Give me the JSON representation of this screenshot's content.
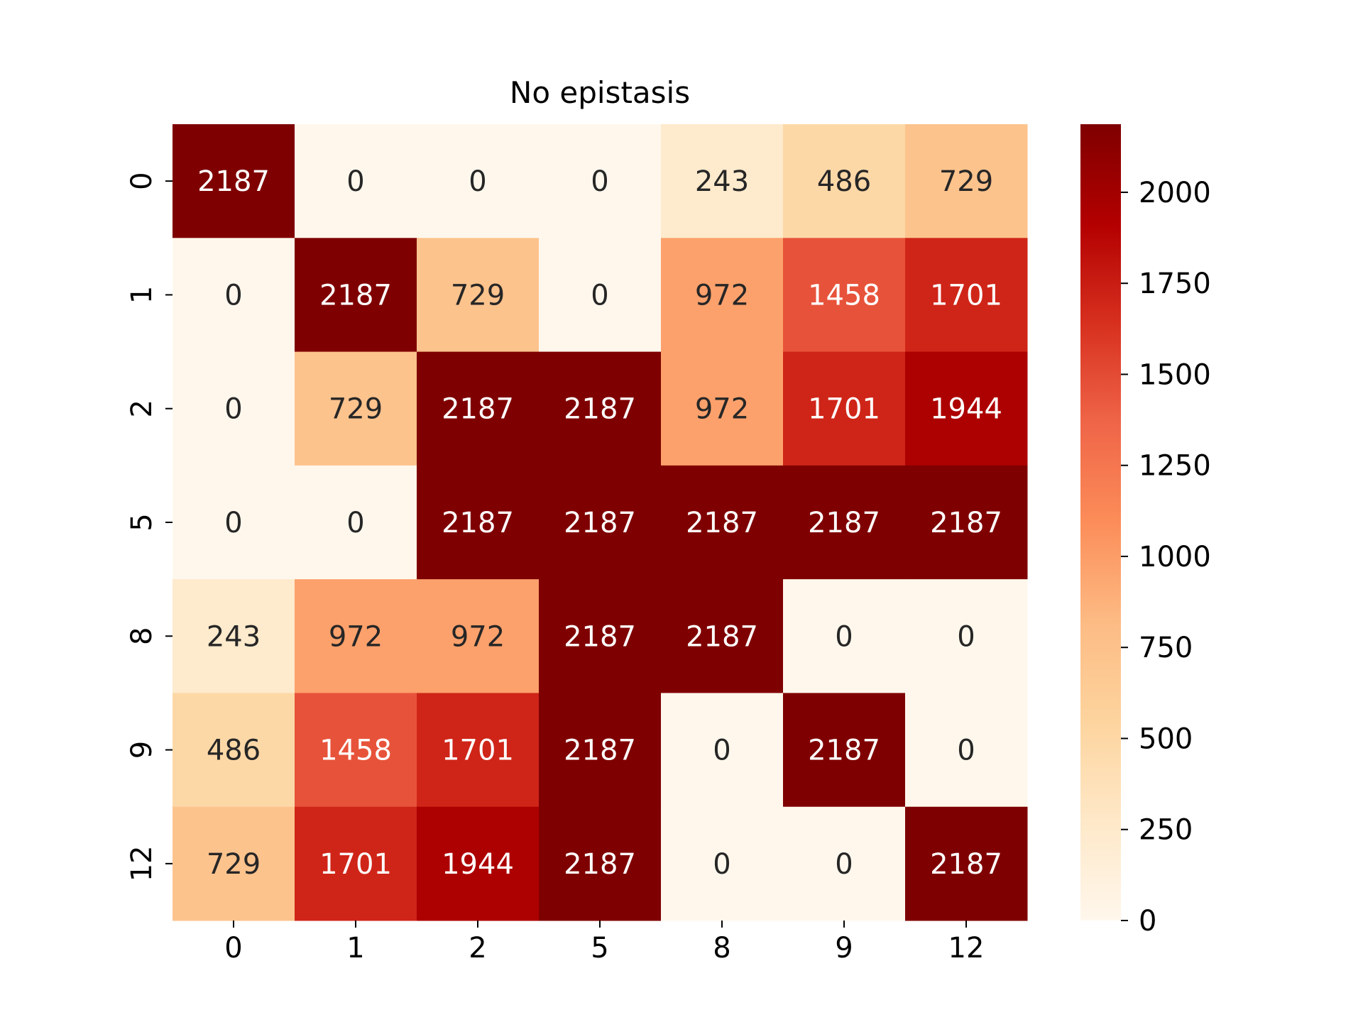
{
  "chart_data": {
    "type": "heatmap",
    "title": "No epistasis",
    "xlabel": "",
    "ylabel": "",
    "x_categories": [
      "0",
      "1",
      "2",
      "5",
      "8",
      "9",
      "12"
    ],
    "y_categories": [
      "0",
      "1",
      "2",
      "5",
      "8",
      "9",
      "12"
    ],
    "values": [
      [
        2187,
        0,
        0,
        0,
        243,
        486,
        729
      ],
      [
        0,
        2187,
        729,
        0,
        972,
        1458,
        1701
      ],
      [
        0,
        729,
        2187,
        2187,
        972,
        1701,
        1944
      ],
      [
        0,
        0,
        2187,
        2187,
        2187,
        2187,
        2187
      ],
      [
        243,
        972,
        972,
        2187,
        2187,
        0,
        0
      ],
      [
        486,
        1458,
        1701,
        2187,
        0,
        2187,
        0
      ],
      [
        729,
        1701,
        1944,
        2187,
        0,
        0,
        2187
      ]
    ],
    "colorbar": {
      "min": 0,
      "max": 2187,
      "ticks": [
        0,
        250,
        500,
        750,
        1000,
        1250,
        1500,
        1750,
        2000
      ]
    },
    "colormap": "OrRd",
    "colormap_stops": [
      "#fff7ec",
      "#fee8c8",
      "#fdd49e",
      "#fdbb84",
      "#fc8d59",
      "#ef6548",
      "#d7301f",
      "#b30000",
      "#7f0000"
    ],
    "grid": false
  }
}
